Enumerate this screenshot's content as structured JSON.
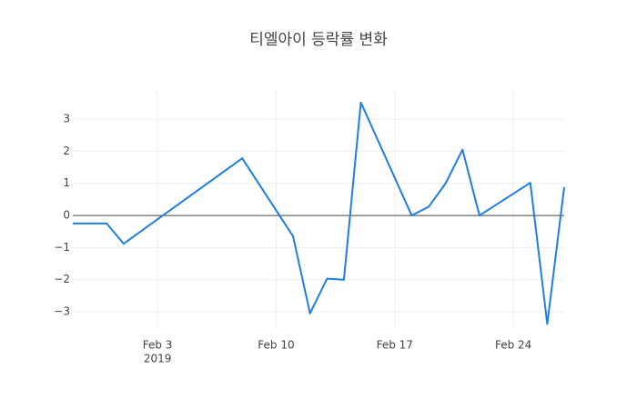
{
  "chart_data": {
    "type": "line",
    "title": "티엘아이 등락률 변화",
    "x": [
      "2019-01-29",
      "2019-01-31",
      "2019-02-01",
      "2019-02-08",
      "2019-02-11",
      "2019-02-12",
      "2019-02-13",
      "2019-02-14",
      "2019-02-15",
      "2019-02-18",
      "2019-02-19",
      "2019-02-20",
      "2019-02-21",
      "2019-02-22",
      "2019-02-25",
      "2019-02-26",
      "2019-02-27"
    ],
    "series": [
      {
        "color": "#1f7fe0",
        "values": [
          -0.25,
          -0.25,
          -0.88,
          1.78,
          -0.65,
          -3.05,
          -1.97,
          -2.0,
          3.52,
          0.0,
          0.27,
          1.0,
          2.05,
          0.0,
          1.02,
          -3.38,
          0.88
        ]
      }
    ],
    "xlim": [
      "2019-01-29",
      "2019-02-27"
    ],
    "xticks": [
      {
        "value": "2019-02-03",
        "label": "Feb 3",
        "sublabel": "2019"
      },
      {
        "value": "2019-02-10",
        "label": "Feb 10"
      },
      {
        "value": "2019-02-17",
        "label": "Feb 17"
      },
      {
        "value": "2019-02-24",
        "label": "Feb 24"
      }
    ],
    "ylim": [
      -3.48,
      3.88
    ],
    "yticks": [
      {
        "value": -3,
        "label": "−3"
      },
      {
        "value": -2,
        "label": "−2"
      },
      {
        "value": -1,
        "label": "−1"
      },
      0,
      1,
      2,
      3
    ],
    "grid": true,
    "zeroline": true
  }
}
